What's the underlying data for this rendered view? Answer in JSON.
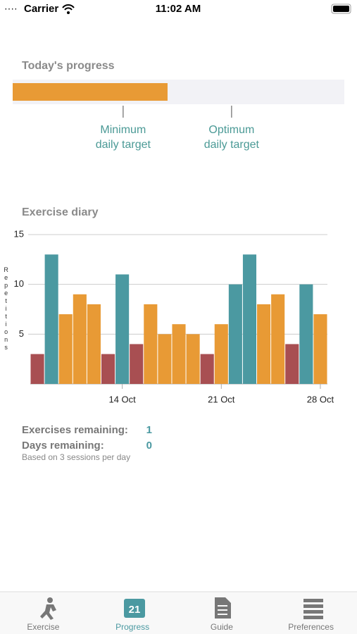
{
  "status_bar": {
    "carrier": "Carrier",
    "time": "11:02 AM"
  },
  "progress": {
    "title": "Today's progress",
    "value": 46.7,
    "color": "#e89a35",
    "targets": [
      {
        "position": 33.3,
        "lines": [
          "Minimum",
          "daily target"
        ]
      },
      {
        "position": 66.0,
        "lines": [
          "Optimum",
          "daily target"
        ]
      }
    ]
  },
  "chart_data": {
    "type": "bar",
    "title": "Exercise diary",
    "y_label": "Repetitions",
    "categories": [
      null,
      null,
      null,
      null,
      null,
      null,
      "14 Oct",
      null,
      null,
      null,
      null,
      null,
      null,
      "21 Oct",
      null,
      null,
      null,
      null,
      null,
      null,
      "28 Oct"
    ],
    "values": [
      3,
      13,
      7,
      9,
      8,
      3,
      11,
      4,
      8,
      5,
      6,
      5,
      3,
      6,
      10,
      13,
      8,
      9,
      4,
      10,
      7
    ],
    "colors": [
      "#a84f52",
      "#4b99a1",
      "#e89a35",
      "#e89a35",
      "#e89a35",
      "#a84f52",
      "#4b99a1",
      "#a84f52",
      "#e89a35",
      "#e89a35",
      "#e89a35",
      "#e89a35",
      "#a84f52",
      "#e89a35",
      "#4b99a1",
      "#4b99a1",
      "#e89a35",
      "#e89a35",
      "#a84f52",
      "#4b99a1",
      "#e89a35"
    ],
    "ylim": [
      0,
      15
    ],
    "yticks": [
      5,
      10,
      15
    ],
    "grid": true
  },
  "stats": {
    "rows": [
      {
        "label": "Exercises remaining:",
        "value": "1"
      },
      {
        "label": "Days remaining:",
        "value": "0"
      }
    ],
    "note": "Based on 3 sessions per day"
  },
  "tabs": {
    "calendar_day": "21",
    "items": [
      {
        "label": "Exercise"
      },
      {
        "label": "Progress",
        "active": true
      },
      {
        "label": "Guide"
      },
      {
        "label": "Preferences"
      }
    ]
  }
}
